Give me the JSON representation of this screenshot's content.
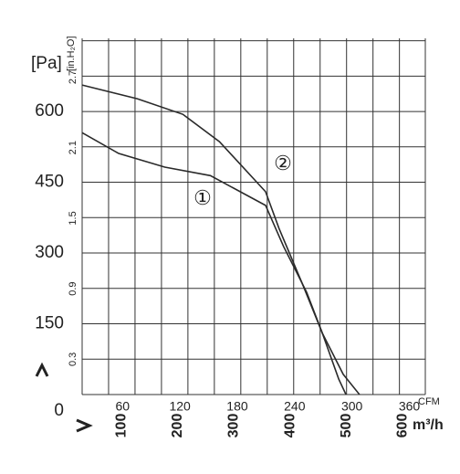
{
  "chart_data": {
    "type": "line",
    "y_label": "[Pa]",
    "y2_label": "[in.H₂O]",
    "x_label": "m³/h",
    "x2_label": "CFM",
    "xlim": [
      30,
      640
    ],
    "ylim": [
      0,
      755
    ],
    "xticks": [
      100,
      200,
      300,
      400,
      500,
      600
    ],
    "x2lim": [
      17.7,
      376.7
    ],
    "x2ticks": [
      60,
      120,
      180,
      240,
      300,
      360
    ],
    "yticks": [
      0,
      150,
      300,
      450,
      600
    ],
    "y2lim": [
      0,
      3.03
    ],
    "y2ticks": [
      0.3,
      0.9,
      1.5,
      2.1,
      2.7
    ],
    "x_grid": [
      30,
      77,
      124,
      171,
      218,
      265,
      312,
      359,
      406,
      453,
      500,
      547,
      594,
      640
    ],
    "y_grid": [
      0,
      75,
      150,
      225,
      300,
      375,
      450,
      525,
      600,
      675,
      750
    ],
    "grid": true,
    "series": [
      {
        "name": "①",
        "color": "#2a2a2a",
        "x": [
          30,
          95,
          177,
          258,
          356,
          388,
          429,
          457,
          494,
          523
        ],
        "values": [
          555,
          511,
          482,
          464,
          401,
          314,
          217,
          130,
          43,
          0
        ]
      },
      {
        "name": "②",
        "color": "#2a2a2a",
        "x": [
          30,
          128,
          209,
          274,
          356,
          380,
          421,
          457,
          486,
          499
        ],
        "values": [
          656,
          627,
          594,
          536,
          430,
          352,
          236,
          130,
          33,
          0
        ]
      }
    ]
  }
}
